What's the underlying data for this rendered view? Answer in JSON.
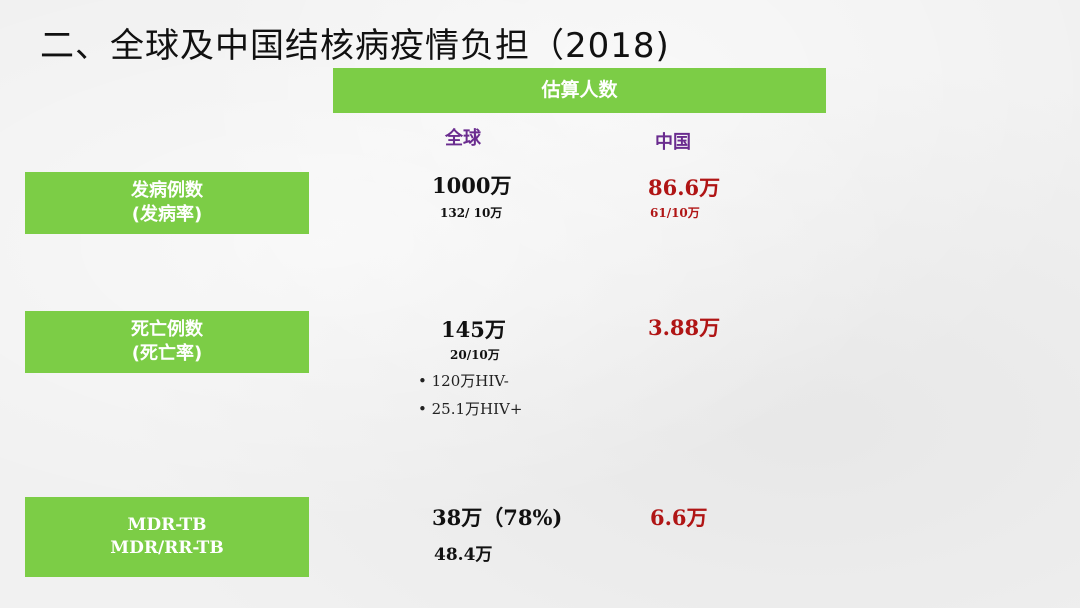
{
  "title": "二、全球及中国结核病疫情负担（2018)",
  "header": "估算人数",
  "columns": {
    "global": "全球",
    "china": "中国"
  },
  "rows": [
    {
      "label_line1": "发病例数",
      "label_line2": "(发病率)",
      "global_value": "1000万",
      "global_rate": "132/ 10万",
      "china_value": "86.6万",
      "china_rate": "61/10万"
    },
    {
      "label_line1": "死亡例数",
      "label_line2": "(死亡率)",
      "global_value": "145万",
      "global_rate": "20/10万",
      "global_bullets": [
        "120万HIV-",
        "25.1万HIV+"
      ],
      "china_value": "3.88万"
    },
    {
      "label_line1": "MDR-TB",
      "label_line2": "MDR/RR-TB",
      "global_value": "38万（78%)",
      "global_value2": "48.4万",
      "china_value": "6.6万"
    }
  ],
  "colors": {
    "green": "#7ccd46",
    "red": "#b01515",
    "purple": "#6a2c8f"
  }
}
